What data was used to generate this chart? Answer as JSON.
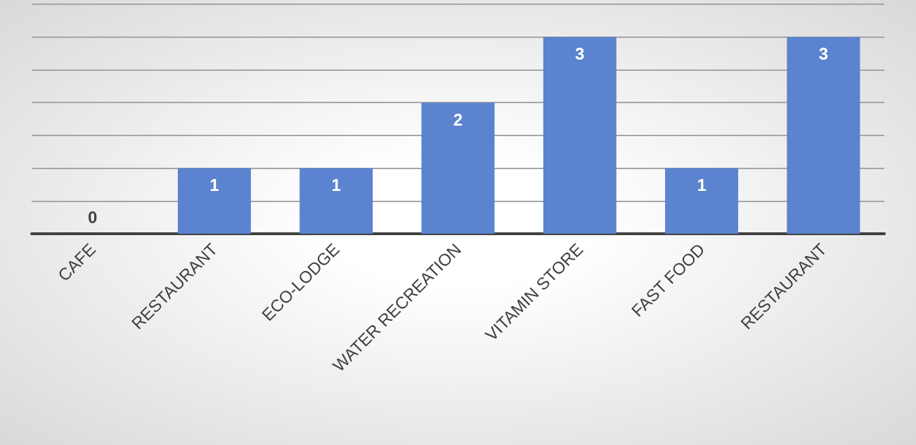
{
  "chart_data": {
    "type": "bar",
    "categories": [
      "CAFE",
      "RESTAURANT",
      "ECO-LODGE",
      "WATER RECREATION",
      "VITAMIN STORE",
      "FAST FOOD",
      "RESTAURANT"
    ],
    "values": [
      0,
      1,
      1,
      2,
      3,
      1,
      3
    ],
    "color": "#5b83cf",
    "data_labels": true,
    "grid": "y",
    "tick_labels": "x",
    "ylim": [
      0,
      3.5
    ],
    "yticks": [
      {
        "value": 0,
        "label": null
      },
      {
        "value": 0.5,
        "label": null
      },
      {
        "value": 1,
        "label": null
      },
      {
        "value": 1.5,
        "label": null
      },
      {
        "value": 2,
        "label": null
      },
      {
        "value": 2.5,
        "label": null
      },
      {
        "value": 3,
        "label": null
      },
      {
        "value": 3.5,
        "label": null
      }
    ]
  }
}
